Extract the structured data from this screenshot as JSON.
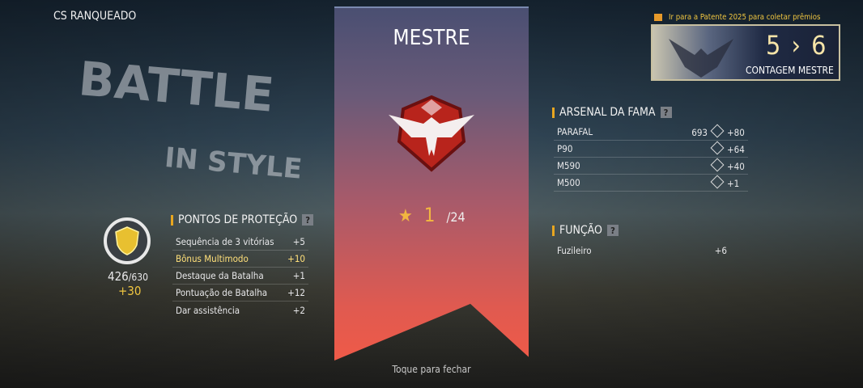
{
  "background": {
    "text_line1": "BATTLE",
    "text_line2": "IN STYLE"
  },
  "title": "CS RANQUEADO",
  "rank_panel": {
    "rank_name": "MESTRE",
    "stars": 1,
    "stars_total": "/24",
    "close_hint": "Toque para fechar",
    "colors": {
      "top": "#4a4f72",
      "bottom": "#ef5a48"
    }
  },
  "protection": {
    "header": "PONTOS DE PROTEÇÃO",
    "help": "?",
    "points": "426",
    "max": "/630",
    "gain": "+30",
    "rows": [
      {
        "label": "Sequência de 3 vitórias",
        "value": "+5"
      },
      {
        "label": "Bônus Multimodo",
        "value": "+10",
        "highlight": true
      },
      {
        "label": "Destaque da Batalha",
        "value": "+1"
      },
      {
        "label": "Pontuação de Batalha",
        "value": "+12"
      },
      {
        "label": "Dar assistência",
        "value": "+2"
      }
    ]
  },
  "arsenal": {
    "header": "ARSENAL DA FAMA",
    "help": "?",
    "rows": [
      {
        "label": "PARAFAL",
        "score": "693",
        "value": "+80"
      },
      {
        "label": "P90",
        "score": "",
        "value": "+64"
      },
      {
        "label": "M590",
        "score": "",
        "value": "+40"
      },
      {
        "label": "M500",
        "score": "",
        "value": "+1"
      }
    ]
  },
  "role": {
    "header": "FUNÇÃO",
    "help": "?",
    "rows": [
      {
        "label": "Fuzileiro",
        "value": "+6"
      }
    ]
  },
  "promo": {
    "text": "Ir para a Patente 2025 para coletar prêmios",
    "count": "5 › 6",
    "label": "CONTAGEM MESTRE"
  }
}
